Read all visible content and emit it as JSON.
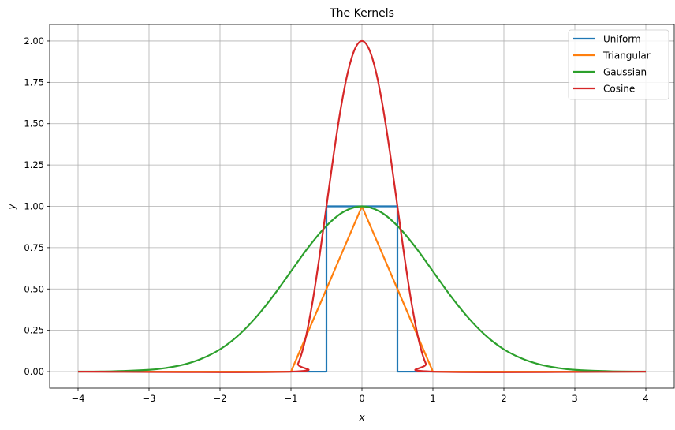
{
  "chart_data": {
    "type": "line",
    "title": "The Kernels",
    "xlabel": "x",
    "ylabel": "y",
    "xlim": [
      -4.4,
      4.4
    ],
    "ylim": [
      -0.1,
      2.1
    ],
    "xticks": [
      -4,
      -3,
      -2,
      -1,
      0,
      1,
      2,
      3,
      4
    ],
    "xtick_labels": [
      "−4",
      "−3",
      "−2",
      "−1",
      "0",
      "1",
      "2",
      "3",
      "4"
    ],
    "yticks": [
      0.0,
      0.25,
      0.5,
      0.75,
      1.0,
      1.25,
      1.5,
      1.75,
      2.0
    ],
    "ytick_labels": [
      "0.00",
      "0.25",
      "0.50",
      "0.75",
      "1.00",
      "1.25",
      "1.50",
      "1.75",
      "2.00"
    ],
    "grid": true,
    "legend_position": "top-right",
    "series": [
      {
        "name": "Uniform",
        "color": "#1f77b4",
        "x": [
          -4,
          -0.5,
          -0.5,
          0.5,
          0.5,
          4
        ],
        "y": [
          0,
          0,
          1,
          1,
          0,
          0
        ]
      },
      {
        "name": "Triangular",
        "color": "#ff7f0e",
        "x": [
          -4,
          -1,
          0,
          1,
          4
        ],
        "y": [
          0,
          0,
          1,
          0,
          0
        ]
      },
      {
        "name": "Gaussian",
        "color": "#2ca02c",
        "x": [
          -4.0,
          -3.5,
          -3.0,
          -2.75,
          -2.5,
          -2.25,
          -2.0,
          -1.75,
          -1.5,
          -1.25,
          -1.0,
          -0.75,
          -0.5,
          -0.25,
          0.0,
          0.25,
          0.5,
          0.75,
          1.0,
          1.25,
          1.5,
          1.75,
          2.0,
          2.25,
          2.5,
          2.75,
          3.0,
          3.5,
          4.0
        ],
        "y": [
          0.0003,
          0.0022,
          0.011,
          0.023,
          0.044,
          0.08,
          0.135,
          0.216,
          0.325,
          0.458,
          0.607,
          0.755,
          0.882,
          0.969,
          1.0,
          0.969,
          0.882,
          0.755,
          0.607,
          0.458,
          0.325,
          0.216,
          0.135,
          0.08,
          0.044,
          0.023,
          0.011,
          0.0022,
          0.0003
        ]
      },
      {
        "name": "Cosine",
        "color": "#d62728",
        "x": [
          -4.0,
          -1.0,
          -0.9,
          -0.8,
          -0.7,
          -0.6,
          -0.5,
          -0.4,
          -0.3,
          -0.2,
          -0.1,
          0.0,
          0.1,
          0.2,
          0.3,
          0.4,
          0.5,
          0.6,
          0.7,
          0.8,
          0.9,
          1.0,
          4.0
        ],
        "y": [
          0.0,
          0.0,
          0.049,
          0.191,
          0.412,
          0.691,
          1.0,
          1.309,
          1.588,
          1.809,
          1.951,
          2.0,
          1.951,
          1.809,
          1.588,
          1.309,
          1.0,
          0.691,
          0.412,
          0.191,
          0.049,
          0.0,
          0.0
        ]
      }
    ]
  }
}
